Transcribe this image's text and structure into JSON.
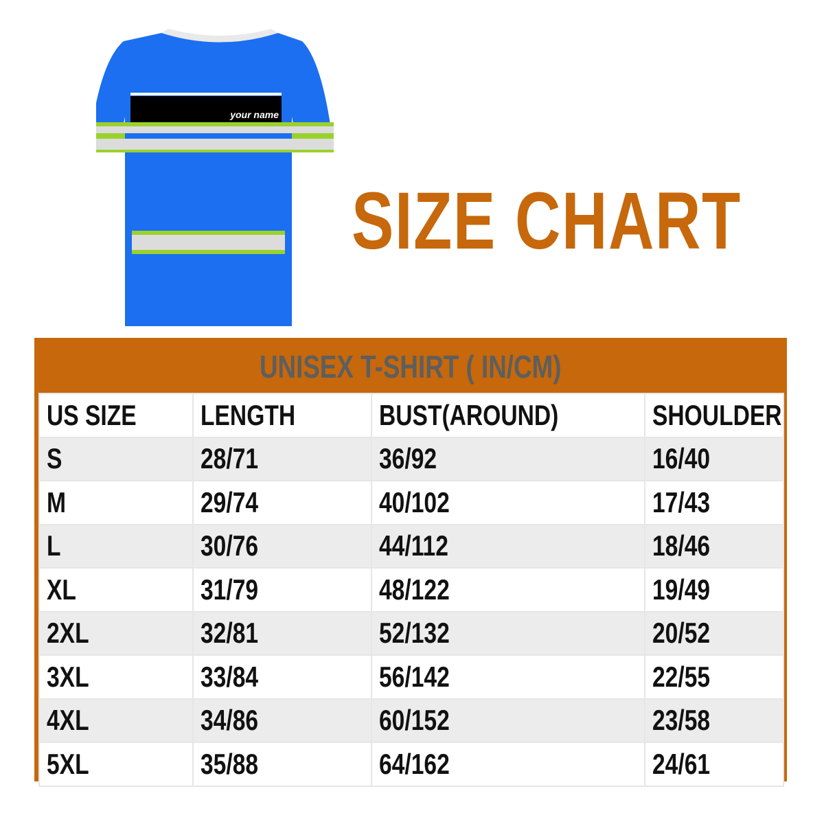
{
  "shirt": {
    "label": "your name"
  },
  "title": "SIZE CHART",
  "table": {
    "caption": "UNISEX T-SHIRT ( IN/CM)",
    "header": [
      "US SIZE",
      "LENGTH",
      "BUST(AROUND)",
      "SHOULDER"
    ],
    "rows": [
      [
        "S",
        "28/71",
        "36/92",
        "16/40"
      ],
      [
        "M",
        "29/74",
        "40/102",
        "17/43"
      ],
      [
        "L",
        "30/76",
        "44/112",
        "18/46"
      ],
      [
        "XL",
        "31/79",
        "48/122",
        "19/49"
      ],
      [
        "2XL",
        "32/81",
        "52/132",
        "20/52"
      ],
      [
        "3XL",
        "33/84",
        "56/142",
        "22/55"
      ],
      [
        "4XL",
        "34/86",
        "60/152",
        "23/58"
      ],
      [
        "5XL",
        "35/88",
        "64/162",
        "24/61"
      ]
    ]
  }
}
